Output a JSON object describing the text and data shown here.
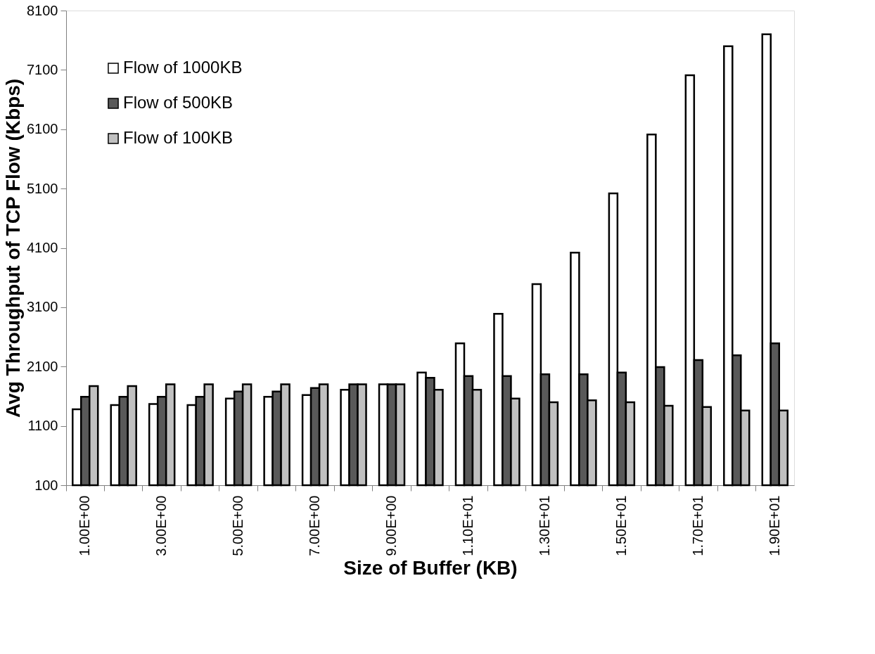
{
  "chart_data": {
    "type": "bar",
    "xlabel": "Size of Buffer (KB)",
    "ylabel": "Avg Throughput of TCP Flow (Kbps)",
    "categories": [
      "1.00E+00",
      null,
      "3.00E+00",
      null,
      "5.00E+00",
      null,
      "7.00E+00",
      null,
      "9.00E+00",
      null,
      "1.10E+01",
      null,
      "1.30E+01",
      null,
      "1.50E+01",
      null,
      "1.70E+01",
      null,
      "1.90E+01"
    ],
    "series": [
      {
        "name": "Flow of 1000KB",
        "color": "#ffffff",
        "values": [
          1380,
          1450,
          1470,
          1450,
          1560,
          1590,
          1620,
          1710,
          1800,
          2000,
          2490,
          2990,
          3490,
          4020,
          5020,
          6010,
          7010,
          7500,
          7700
        ]
      },
      {
        "name": "Flow of 500KB",
        "color": "#595959",
        "values": [
          1590,
          1590,
          1590,
          1590,
          1680,
          1680,
          1740,
          1800,
          1800,
          1910,
          1940,
          1940,
          1970,
          1970,
          2000,
          2090,
          2210,
          2290,
          2490
        ]
      },
      {
        "name": "Flow of 100KB",
        "color": "#c0c0c0",
        "values": [
          1770,
          1770,
          1800,
          1800,
          1800,
          1800,
          1800,
          1800,
          1800,
          1710,
          1710,
          1560,
          1500,
          1530,
          1500,
          1440,
          1420,
          1360,
          1360
        ]
      }
    ],
    "ylim": [
      100,
      8100
    ],
    "yticks": [
      100,
      1100,
      2100,
      3100,
      4100,
      5100,
      6100,
      7100,
      8100
    ],
    "grid": false,
    "legend": "top left"
  }
}
